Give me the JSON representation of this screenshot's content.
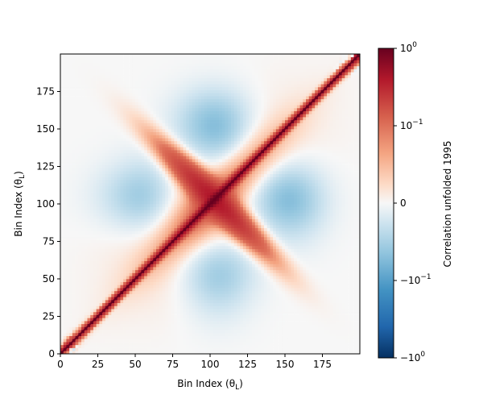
{
  "chart_data": {
    "type": "heatmap",
    "xlabel": "Bin Index (θ",
    "xlabel_sub": "L",
    "ylabel": "Bin Index (θ",
    "ylabel_sub": "L",
    "xlim": [
      0,
      200
    ],
    "ylim": [
      0,
      200
    ],
    "x_ticks": [
      0,
      25,
      50,
      75,
      100,
      125,
      150,
      175
    ],
    "y_ticks": [
      0,
      25,
      50,
      75,
      100,
      125,
      150,
      175
    ],
    "colorbar": {
      "label": "Correlation unfolded 1995",
      "scale": "symlog",
      "range": [
        -1,
        1
      ],
      "ticks": [
        {
          "value": 1,
          "base": "10",
          "exp": "0"
        },
        {
          "value": 0.1,
          "base": "10",
          "exp": "−1"
        },
        {
          "value": 0,
          "base": "0",
          "exp": ""
        },
        {
          "value": -0.1,
          "base": "−10",
          "exp": "−1"
        },
        {
          "value": -1,
          "base": "−10",
          "exp": "0"
        }
      ],
      "colormap": "RdBu_r"
    },
    "matrix_size": 200,
    "features": {
      "diagonal": 1.0,
      "x_pattern_center": [
        103,
        103
      ],
      "x_pattern_peak": 0.3,
      "negative_regions": [
        {
          "center_x": 105,
          "center_y": 140,
          "value": -0.08
        },
        {
          "center_x": 105,
          "center_y": 50,
          "value": -0.06
        },
        {
          "center_x": 60,
          "center_y": 103,
          "value": -0.06
        },
        {
          "center_x": 155,
          "center_y": 103,
          "value": -0.08
        }
      ]
    }
  }
}
